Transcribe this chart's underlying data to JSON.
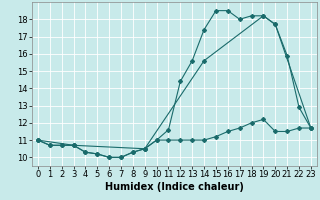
{
  "xlabel": "Humidex (Indice chaleur)",
  "bg_color": "#c8eaea",
  "line_color": "#1a6b6b",
  "grid_color": "#ffffff",
  "xlim": [
    -0.5,
    23.5
  ],
  "ylim": [
    9.5,
    19.0
  ],
  "yticks": [
    10,
    11,
    12,
    13,
    14,
    15,
    16,
    17,
    18
  ],
  "xticks": [
    0,
    1,
    2,
    3,
    4,
    5,
    6,
    7,
    8,
    9,
    10,
    11,
    12,
    13,
    14,
    15,
    16,
    17,
    18,
    19,
    20,
    21,
    22,
    23
  ],
  "line1_x": [
    0,
    1,
    2,
    3,
    4,
    5,
    6,
    7,
    8,
    9,
    10,
    11,
    12,
    13,
    14,
    15,
    16,
    17,
    18,
    19,
    20,
    21,
    22,
    23
  ],
  "line1_y": [
    11.0,
    10.7,
    10.7,
    10.7,
    10.3,
    10.2,
    10.0,
    10.0,
    10.3,
    10.5,
    11.0,
    11.6,
    14.4,
    15.6,
    17.4,
    18.5,
    18.5,
    18.0,
    18.2,
    18.2,
    17.7,
    15.9,
    12.9,
    11.7
  ],
  "line2_x": [
    0,
    3,
    9,
    14,
    19,
    20,
    23
  ],
  "line2_y": [
    11.0,
    10.7,
    10.5,
    15.6,
    18.2,
    17.7,
    11.7
  ],
  "line3_x": [
    0,
    1,
    2,
    3,
    4,
    5,
    6,
    7,
    8,
    9,
    10,
    11,
    12,
    13,
    14,
    15,
    16,
    17,
    18,
    19,
    20,
    21,
    22,
    23
  ],
  "line3_y": [
    11.0,
    10.7,
    10.7,
    10.7,
    10.3,
    10.2,
    10.0,
    10.0,
    10.3,
    10.5,
    11.0,
    11.0,
    11.0,
    11.0,
    11.0,
    11.2,
    11.5,
    11.7,
    12.0,
    12.2,
    11.5,
    11.5,
    11.7,
    11.7
  ],
  "marker_size": 2,
  "linewidth": 0.8,
  "font_size": 6
}
